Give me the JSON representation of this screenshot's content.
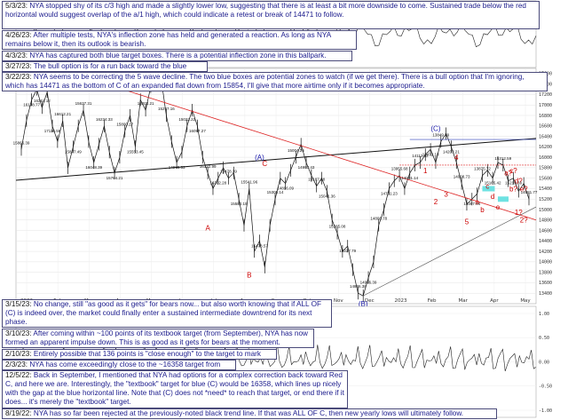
{
  "chart_data": {
    "type": "line",
    "header": {
      "symbol": "$NYA",
      "exchange": "NYSE",
      "name": "Composite Index",
      "interval": "Daily",
      "date": "16-May-2023",
      "sub": "NYA (NYSE Composite) 15514.93"
    },
    "top_panel_tag": "© StockCharts.com",
    "x_tick_labels": [
      "2022",
      "Feb",
      "Mar",
      "Apr",
      "May",
      "Jun",
      "Jul",
      "Aug",
      "Sep",
      "Oct",
      "Nov",
      "Dec",
      "2023",
      "Feb",
      "Mar",
      "Apr",
      "May"
    ],
    "y_range": [
      13200,
      17700
    ],
    "y_tick_labels": [
      "17600",
      "17400",
      "17200",
      "17000",
      "16800",
      "16600",
      "16400",
      "16200",
      "16000",
      "15800",
      "15600",
      "15400",
      "15200",
      "15000",
      "14800",
      "14600",
      "14400",
      "14200",
      "14000",
      "13800",
      "13600",
      "13400"
    ],
    "bottom_y_tick_labels": [
      "1.00",
      "0.50",
      "0.00",
      "-0.50",
      "-1.00"
    ],
    "series": [
      {
        "values": [
          16150,
          16700,
          17100,
          17300,
          16950,
          17250,
          16600,
          16300,
          16700,
          15800,
          16200,
          16600,
          16900,
          16300,
          15900,
          16250,
          16600,
          16100,
          15700,
          16000,
          16500,
          16800,
          16200,
          17100,
          16900,
          17350,
          17650,
          17500,
          16800,
          16300,
          15900,
          16100,
          16600,
          16900,
          16600,
          16000,
          15700,
          15400,
          15600,
          15800,
          15600,
          15700,
          15200,
          14700,
          15400,
          14200,
          14400,
          13900,
          14700,
          15200,
          15600,
          15500,
          15750,
          16000,
          16250,
          15900,
          15650,
          15450,
          15600,
          15350,
          14800,
          14550,
          14200,
          14300,
          13850,
          13400,
          13350,
          13700,
          14000,
          14700,
          15000,
          15400,
          15550,
          15650,
          15400,
          15700,
          15850,
          15900,
          16050,
          16150,
          15900,
          16300,
          16450,
          16200,
          15900,
          15500,
          15100,
          15200,
          15300,
          15650,
          15750,
          15600,
          15900,
          15850,
          15550,
          15600,
          15350,
          15500,
          15200
        ]
      }
    ],
    "wave_labels": [
      "(A)",
      "(C)",
      "(B)",
      "A",
      "B",
      "C",
      "1",
      "2",
      "3",
      "4",
      "5",
      "a",
      "b",
      "c",
      "d",
      "e",
      "a?",
      "b?",
      "c?",
      "d?",
      "e?",
      "1?",
      "2?"
    ],
    "price_labels": [
      "15866.39",
      "16178.77",
      "16261.12",
      "17116.58",
      "16612.21",
      "15877.49",
      "15637.31",
      "16048.39",
      "16234.33",
      "15764.21",
      "15800.17",
      "15553.45",
      "16003.21",
      "15469.93",
      "15297.16",
      "14975.53",
      "15022.22",
      "16097.27",
      "16122.99",
      "16302.28",
      "15478.39",
      "15580.15",
      "15541.96",
      "15478.57",
      "15305.14",
      "14896.09",
      "15004.26",
      "14997.43",
      "15187.28",
      "15041.36",
      "15285.08",
      "16227.79",
      "14886.38",
      "14976.39",
      "14808.78",
      "14751.23",
      "13955.68",
      "14091.14",
      "14112.32",
      "13472.18",
      "13849.79",
      "14207.21",
      "14008.73",
      "14397.04",
      "13875.72",
      "15165.42",
      "15312.59",
      "15219.28",
      "14681.77"
    ]
  },
  "notes": [
    {
      "date": "5/3/23:",
      "text": "NYA stopped shy of its c/3 high and made a slightly lower low, suggesting that there is at least a bit more downside to come. Sustained trade below the red horizontal would suggest overlap of the a/1 high, which could indicate a retest or break of 14471 to follow."
    },
    {
      "date": "4/26/23:",
      "text": "After multiple tests, NYA's inflection zone has held and generated a reaction.  As long as NYA remains below it, then its outlook is bearish."
    },
    {
      "date": "4/3/23:",
      "text": "NYA has captured both blue target boxes.  There is a potential inflection zone in this ballpark."
    },
    {
      "date": "3/27/23:",
      "text": "The bull option is for a run back toward the blue targets."
    },
    {
      "date": "3/22/23:",
      "text": "NYA seems to be correcting the 5 wave decline.  The two blue boxes are potential zones to watch (if we get there).  There is a bull option that I'm ignoring, which has 14471 as the bottom of C of an expanded flat down from 15854, I'll give that more airtime only if it becomes appropriate."
    },
    {
      "date": "3/15/23:",
      "text": "No change, still \"as good as it gets\" for bears now... but also worth knowing that if ALL OF (C) is indeed over, the market could finally enter a sustained intermediate downtrend for its next phase."
    },
    {
      "date": "3/10/23:",
      "text": "After coming within ~100 points of its textbook target (from September), NYA has now formed an apparent impulse down.  This is as good as it gets for bears at the moment."
    },
    {
      "date": "2/10/23:",
      "text": "Entirely possible that 136 points is \"close enough\" to the target to mark ALL OF C."
    },
    {
      "date": "2/3/23:",
      "text": "NYA has come exceedingly close to the ~16358 target from 12/5."
    },
    {
      "date": "12/5/22:",
      "text": "Back in September, I mentioned that NYA had options for a complex correction back toward Red C, and here we are. Interestingly, the \"textbook\" target for blue (C) would be 16358, which lines up nicely with the gap at the blue horizontal line. Note that (C) does not *need* to reach that target, or end there if it does... it's merely the \"textbook\" target."
    },
    {
      "date": "8/19/22:",
      "text": "NYA has so far been rejected at the previously-noted black trend line.  If that was ALL OF C, then new yearly lows will ultimately follow."
    }
  ],
  "colors": {
    "note_text": "#1a1a8c",
    "red_label": "#cc0000",
    "blue_label": "#1a1aaa",
    "trend_red": "#dd2222",
    "trend_black": "#111111",
    "box_cyan": "#55dddd",
    "bar": "#111111"
  }
}
